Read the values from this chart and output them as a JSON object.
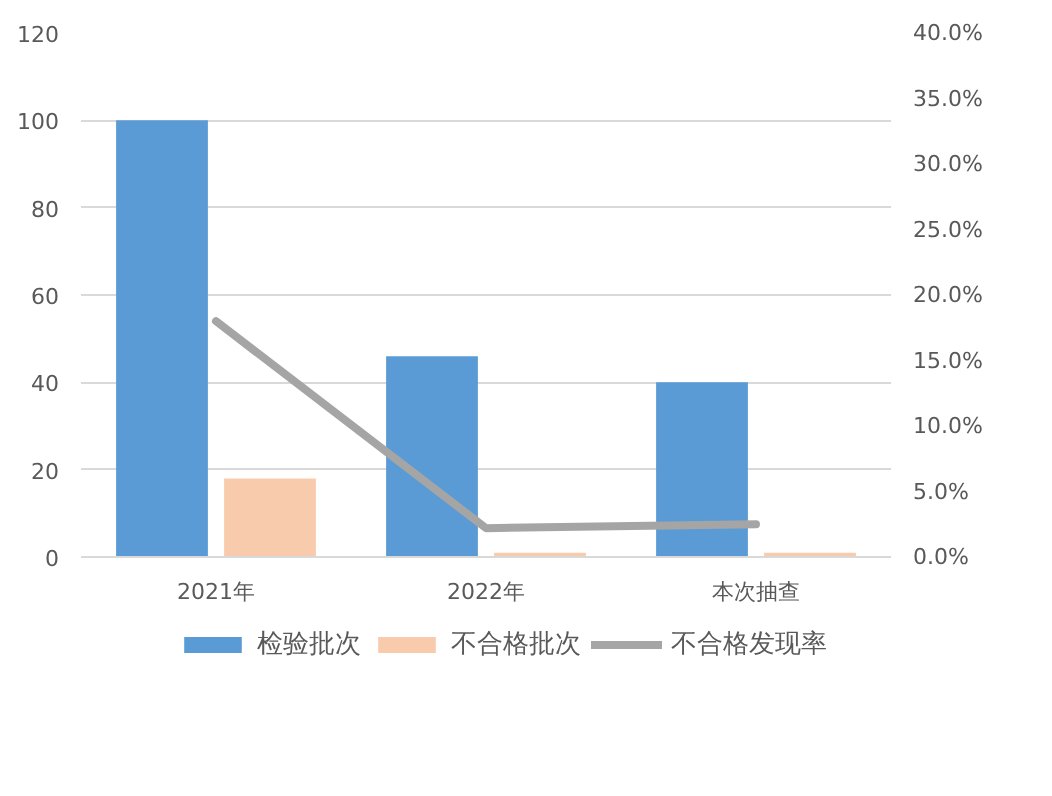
{
  "chart_data": {
    "type": "bar",
    "categories": [
      "2021年",
      "2022年",
      "本次抽查"
    ],
    "series": [
      {
        "name": "检验批次",
        "color": "#5b9bd5",
        "values": [
          100,
          46,
          40
        ]
      },
      {
        "name": "不合格批次",
        "color": "#f8cbad",
        "values": [
          18,
          1,
          1
        ]
      },
      {
        "name": "不合格发现率",
        "color": "#a5a5a5",
        "type": "line",
        "axis": "y2",
        "values": [
          18,
          2.2,
          2.5
        ]
      }
    ],
    "ylim": [
      0,
      120
    ],
    "yticks": [
      0,
      20,
      40,
      60,
      80,
      100,
      120
    ],
    "y2lim": [
      0,
      40
    ],
    "y2ticks": [
      {
        "value": 0,
        "label": "0.0%"
      },
      {
        "value": 5,
        "label": "5.0%"
      },
      {
        "value": 10,
        "label": "10.0%"
      },
      {
        "value": 15,
        "label": "15.0%"
      },
      {
        "value": 20,
        "label": "20.0%"
      },
      {
        "value": 25,
        "label": "25.0%"
      },
      {
        "value": 30,
        "label": "30.0%"
      },
      {
        "value": 35,
        "label": "35.0%"
      },
      {
        "value": 40,
        "label": "40.0%"
      }
    ],
    "grid": "y",
    "legend": "bottom",
    "marker": "none"
  }
}
